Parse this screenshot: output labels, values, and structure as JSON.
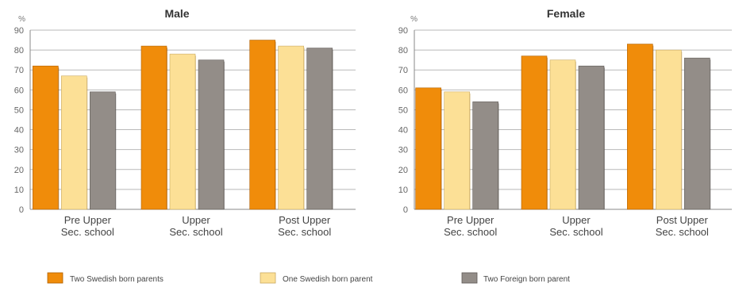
{
  "legend": [
    {
      "label": "Two Swedish born parents",
      "color": "#F08C0A"
    },
    {
      "label": "One Swedish born parent",
      "color": "#FCE096"
    },
    {
      "label": "Two Foreign born parent",
      "color": "#938D88"
    }
  ],
  "chart_data": [
    {
      "type": "bar",
      "title": "Male",
      "unit_label": "%",
      "ylim": [
        0,
        90
      ],
      "yticks": [
        0,
        10,
        20,
        30,
        40,
        50,
        60,
        70,
        80,
        90
      ],
      "grid": true,
      "categories": [
        [
          "Pre Upper",
          "Sec. school"
        ],
        [
          "Upper",
          "Sec. school"
        ],
        [
          "Post Upper",
          "Sec. school"
        ]
      ],
      "series": [
        {
          "name": "Two Swedish born parents",
          "values": [
            72,
            82,
            85
          ]
        },
        {
          "name": "One Swedish born parent",
          "values": [
            67,
            78,
            82
          ]
        },
        {
          "name": "Two Foreign born parent",
          "values": [
            59,
            75,
            81
          ]
        }
      ]
    },
    {
      "type": "bar",
      "title": "Female",
      "unit_label": "%",
      "ylim": [
        0,
        90
      ],
      "yticks": [
        0,
        10,
        20,
        30,
        40,
        50,
        60,
        70,
        80,
        90
      ],
      "grid": true,
      "categories": [
        [
          "Pre Upper",
          "Sec. school"
        ],
        [
          "Upper",
          "Sec. school"
        ],
        [
          "Post Upper",
          "Sec. school"
        ]
      ],
      "series": [
        {
          "name": "Two Swedish born parents",
          "values": [
            61,
            77,
            83
          ]
        },
        {
          "name": "One Swedish born parent",
          "values": [
            59,
            75,
            80
          ]
        },
        {
          "name": "Two Foreign born parent",
          "values": [
            54,
            72,
            76
          ]
        }
      ]
    }
  ]
}
